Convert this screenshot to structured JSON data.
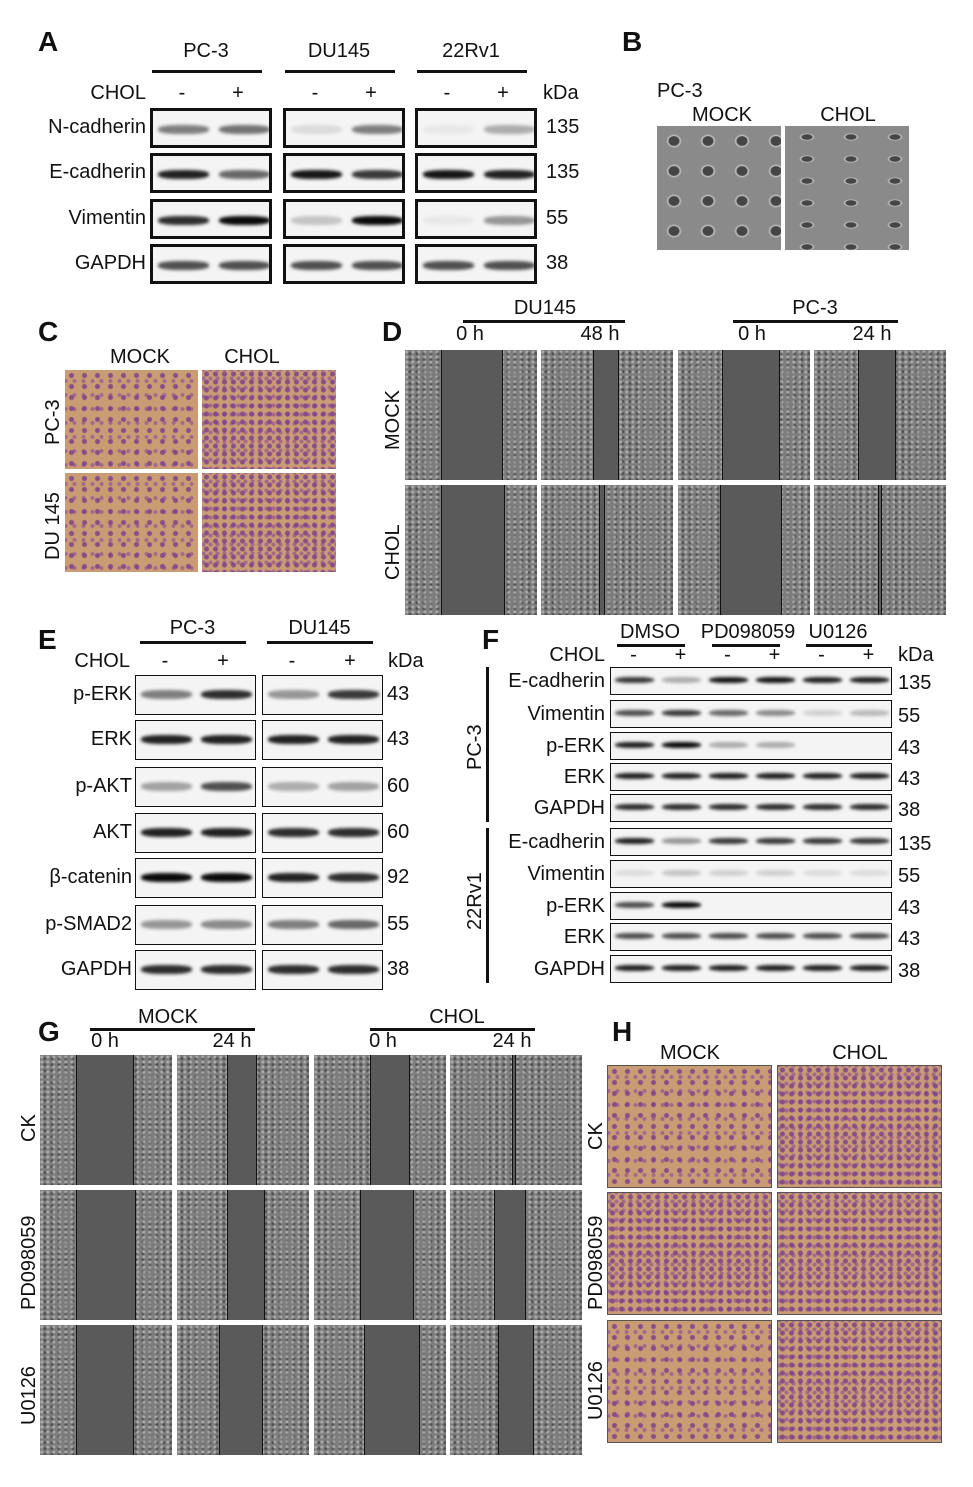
{
  "panelA": {
    "label": "A",
    "cell_lines": [
      "PC-3",
      "DU145",
      "22Rv1"
    ],
    "treatment_label": "CHOL",
    "lanes": [
      "-",
      "+"
    ],
    "kda_label": "kDa",
    "rows": [
      {
        "protein": "N-cadherin",
        "kda": "135",
        "band_intensity": [
          [
            0.5,
            0.55
          ],
          [
            0.1,
            0.5
          ],
          [
            0.05,
            0.3
          ]
        ]
      },
      {
        "protein": "E-cadherin",
        "kda": "135",
        "band_intensity": [
          [
            0.9,
            0.6
          ],
          [
            0.95,
            0.8
          ],
          [
            0.95,
            0.9
          ]
        ]
      },
      {
        "protein": "Vimentin",
        "kda": "55",
        "band_intensity": [
          [
            0.85,
            1
          ],
          [
            0.2,
            1
          ],
          [
            0.05,
            0.4
          ]
        ]
      },
      {
        "protein": "GAPDH",
        "kda": "38",
        "band_intensity": [
          [
            0.7,
            0.7
          ],
          [
            0.7,
            0.7
          ],
          [
            0.7,
            0.7
          ]
        ]
      }
    ]
  },
  "panelB": {
    "label": "B",
    "cell_line": "PC-3",
    "conditions": [
      "MOCK",
      "CHOL"
    ]
  },
  "panelC": {
    "label": "C",
    "conditions": [
      "MOCK",
      "CHOL"
    ],
    "rows": [
      "PC-3",
      "DU 145"
    ]
  },
  "panelD": {
    "label": "D",
    "groups": [
      {
        "name": "DU145",
        "times": [
          "0 h",
          "48 h"
        ]
      },
      {
        "name": "PC-3",
        "times": [
          "0 h",
          "24 h"
        ]
      }
    ],
    "rows": [
      "MOCK",
      "CHOL"
    ]
  },
  "panelE": {
    "label": "E",
    "cell_lines": [
      "PC-3",
      "DU145"
    ],
    "treatment_label": "CHOL",
    "lanes": [
      "-",
      "+"
    ],
    "kda_label": "kDa",
    "rows": [
      {
        "protein": "p-ERK",
        "kda": "43",
        "band_intensity": [
          [
            0.5,
            0.85
          ],
          [
            0.4,
            0.8
          ]
        ]
      },
      {
        "protein": "ERK",
        "kda": "43",
        "band_intensity": [
          [
            0.9,
            0.9
          ],
          [
            0.9,
            0.9
          ]
        ]
      },
      {
        "protein": "p-AKT",
        "kda": "60",
        "band_intensity": [
          [
            0.35,
            0.7
          ],
          [
            0.3,
            0.35
          ]
        ]
      },
      {
        "protein": "AKT",
        "kda": "60",
        "band_intensity": [
          [
            0.9,
            0.9
          ],
          [
            0.85,
            0.85
          ]
        ]
      },
      {
        "protein": "β-catenin",
        "kda": "92",
        "band_intensity": [
          [
            1,
            1
          ],
          [
            0.9,
            0.85
          ]
        ]
      },
      {
        "protein": "p-SMAD2",
        "kda": "55",
        "band_intensity": [
          [
            0.4,
            0.45
          ],
          [
            0.5,
            0.6
          ]
        ]
      },
      {
        "protein": "GAPDH",
        "kda": "38",
        "band_intensity": [
          [
            0.85,
            0.85
          ],
          [
            0.85,
            0.85
          ]
        ]
      }
    ]
  },
  "panelF": {
    "label": "F",
    "inhibitors": [
      "DMSO",
      "PD098059",
      "U0126"
    ],
    "treatment_label": "CHOL",
    "lanes": [
      "-",
      "+",
      "-",
      "+",
      "-",
      "+"
    ],
    "kda_label": "kDa",
    "groups": [
      {
        "cell_line": "PC-3",
        "rows": [
          {
            "protein": "E-cadherin",
            "kda": "135",
            "band_intensity": [
              0.8,
              0.3,
              0.95,
              0.95,
              0.9,
              0.9
            ]
          },
          {
            "protein": "Vimentin",
            "kda": "55",
            "band_intensity": [
              0.7,
              0.8,
              0.6,
              0.45,
              0.15,
              0.25
            ]
          },
          {
            "protein": "p-ERK",
            "kda": "43",
            "band_intensity": [
              0.9,
              1,
              0.3,
              0.3,
              0,
              0
            ]
          },
          {
            "protein": "ERK",
            "kda": "43",
            "band_intensity": [
              0.9,
              0.9,
              0.9,
              0.9,
              0.9,
              0.9
            ]
          },
          {
            "protein": "GAPDH",
            "kda": "38",
            "band_intensity": [
              0.85,
              0.85,
              0.85,
              0.85,
              0.85,
              0.85
            ]
          }
        ]
      },
      {
        "cell_line": "22Rv1",
        "rows": [
          {
            "protein": "E-cadherin",
            "kda": "135",
            "band_intensity": [
              0.9,
              0.4,
              0.8,
              0.8,
              0.8,
              0.8
            ]
          },
          {
            "protein": "Vimentin",
            "kda": "55",
            "band_intensity": [
              0.1,
              0.2,
              0.15,
              0.15,
              0.1,
              0.1
            ]
          },
          {
            "protein": "p-ERK",
            "kda": "43",
            "band_intensity": [
              0.7,
              1,
              0,
              0,
              0,
              0
            ]
          },
          {
            "protein": "ERK",
            "kda": "43",
            "band_intensity": [
              0.7,
              0.7,
              0.7,
              0.7,
              0.7,
              0.7
            ]
          },
          {
            "protein": "GAPDH",
            "kda": "38",
            "band_intensity": [
              0.9,
              0.9,
              0.9,
              0.9,
              0.9,
              0.9
            ]
          }
        ]
      }
    ]
  },
  "panelG": {
    "label": "G",
    "groups": [
      {
        "name": "MOCK",
        "times": [
          "0 h",
          "24 h"
        ]
      },
      {
        "name": "CHOL",
        "times": [
          "0 h",
          "24 h"
        ]
      }
    ],
    "rows": [
      "CK",
      "PD098059",
      "U0126"
    ]
  },
  "panelH": {
    "label": "H",
    "conditions": [
      "MOCK",
      "CHOL"
    ],
    "rows": [
      "CK",
      "PD098059",
      "U0126"
    ]
  }
}
